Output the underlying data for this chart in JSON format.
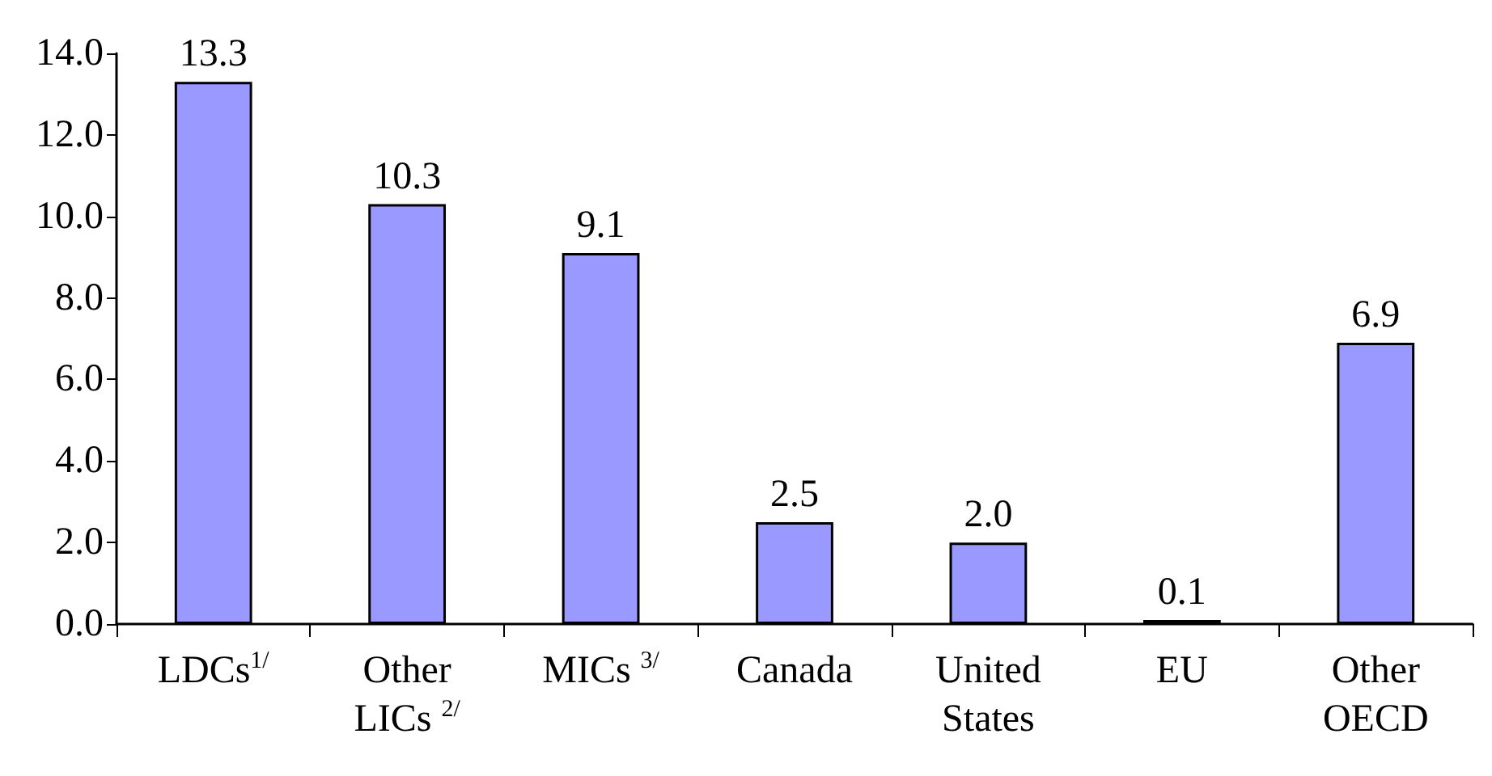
{
  "chart_data": {
    "type": "bar",
    "categories": [
      "LDCs$^{1/}$",
      "Other\nLICs $^{2/}$",
      "MICs $^{3/}$",
      "Canada",
      "United\nStates",
      "EU",
      "Other\nOECD"
    ],
    "values": [
      13.3,
      10.3,
      9.1,
      2.5,
      2.0,
      0.1,
      6.9
    ],
    "value_labels": [
      "13.3",
      "10.3",
      "9.1",
      "2.5",
      "2.0",
      "0.1",
      "6.9"
    ],
    "color": "#9999ff",
    "ylim": [
      0,
      14
    ],
    "yticks": [
      {
        "value": 0,
        "label": "0.0"
      },
      {
        "value": 2,
        "label": "2.0"
      },
      {
        "value": 4,
        "label": "4.0"
      },
      {
        "value": 6,
        "label": "6.0"
      },
      {
        "value": 8,
        "label": "8.0"
      },
      {
        "value": 10,
        "label": "10.0"
      },
      {
        "value": 12,
        "label": "12.0"
      },
      {
        "value": 14,
        "label": "14.0"
      }
    ],
    "grid": false
  }
}
